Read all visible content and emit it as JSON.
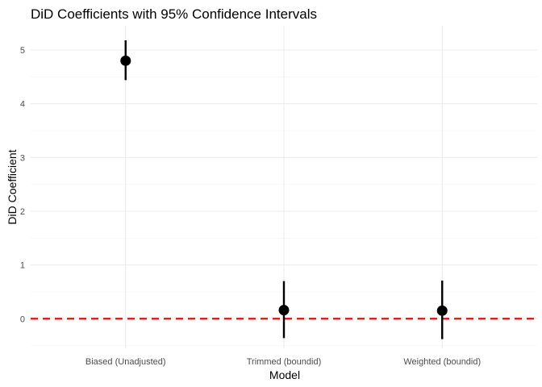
{
  "chart_data": {
    "type": "scatter",
    "title": "DiD Coefficients with 95% Confidence Intervals",
    "xlabel": "Model",
    "ylabel": "DiD Coefficient",
    "categories": [
      "Biased (Unadjusted)",
      "Trimmed (boundid)",
      "Weighted (boundid)"
    ],
    "estimates": [
      4.8,
      0.16,
      0.15
    ],
    "ci_lower": [
      4.44,
      -0.36,
      -0.38
    ],
    "ci_upper": [
      5.18,
      0.7,
      0.71
    ],
    "ylim": [
      -0.55,
      5.45
    ],
    "yticks": [
      0,
      1,
      2,
      3,
      4,
      5
    ],
    "reference_line": {
      "y": 0,
      "style": "dashed",
      "color": "#e00000"
    },
    "point_color": "#000000",
    "grid": true,
    "legend": "none"
  }
}
